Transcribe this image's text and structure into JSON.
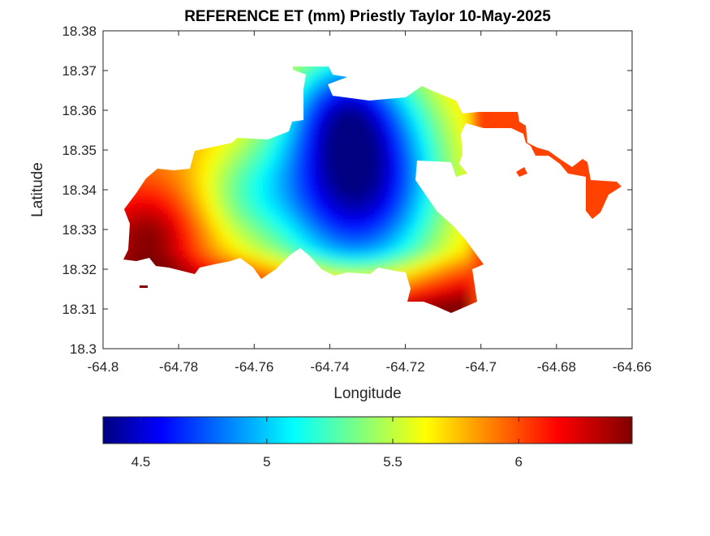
{
  "chart_data": {
    "type": "heatmap",
    "title": "REFERENCE ET (mm) Priestly Taylor 10-May-2025",
    "xlabel": "Longitude",
    "ylabel": "Latitude",
    "xlim": [
      -64.8,
      -64.66
    ],
    "ylim": [
      18.3,
      18.38
    ],
    "xticks": [
      {
        "value": -64.8,
        "label": "-64.8"
      },
      {
        "value": -64.78,
        "label": "-64.78"
      },
      {
        "value": -64.76,
        "label": "-64.76"
      },
      {
        "value": -64.74,
        "label": "-64.74"
      },
      {
        "value": -64.72,
        "label": "-64.72"
      },
      {
        "value": -64.7,
        "label": "-64.7"
      },
      {
        "value": -64.68,
        "label": "-64.68"
      },
      {
        "value": -64.66,
        "label": "-64.66"
      }
    ],
    "yticks": [
      {
        "value": 18.3,
        "label": "18.3"
      },
      {
        "value": 18.31,
        "label": "18.31"
      },
      {
        "value": 18.32,
        "label": "18.32"
      },
      {
        "value": 18.33,
        "label": "18.33"
      },
      {
        "value": 18.34,
        "label": "18.34"
      },
      {
        "value": 18.35,
        "label": "18.35"
      },
      {
        "value": 18.36,
        "label": "18.36"
      },
      {
        "value": 18.37,
        "label": "18.37"
      },
      {
        "value": 18.38,
        "label": "18.38"
      }
    ],
    "colorbar": {
      "colormap": "jet",
      "range": [
        4.35,
        6.45
      ],
      "placement": "bottom",
      "ticks": [
        {
          "value": 4.5,
          "label": "4.5"
        },
        {
          "value": 5,
          "label": "5"
        },
        {
          "value": 5.5,
          "label": "5.5"
        },
        {
          "value": 6,
          "label": "6"
        }
      ]
    },
    "grid": false,
    "approx_field": {
      "description_of_values": "ET in mm, approximate",
      "max_region_lon_lat": [
        -64.788,
        18.327
      ],
      "max_value": 6.4,
      "min_region_lon_lat": [
        -64.733,
        18.343
      ],
      "min_value": 4.4
    }
  }
}
